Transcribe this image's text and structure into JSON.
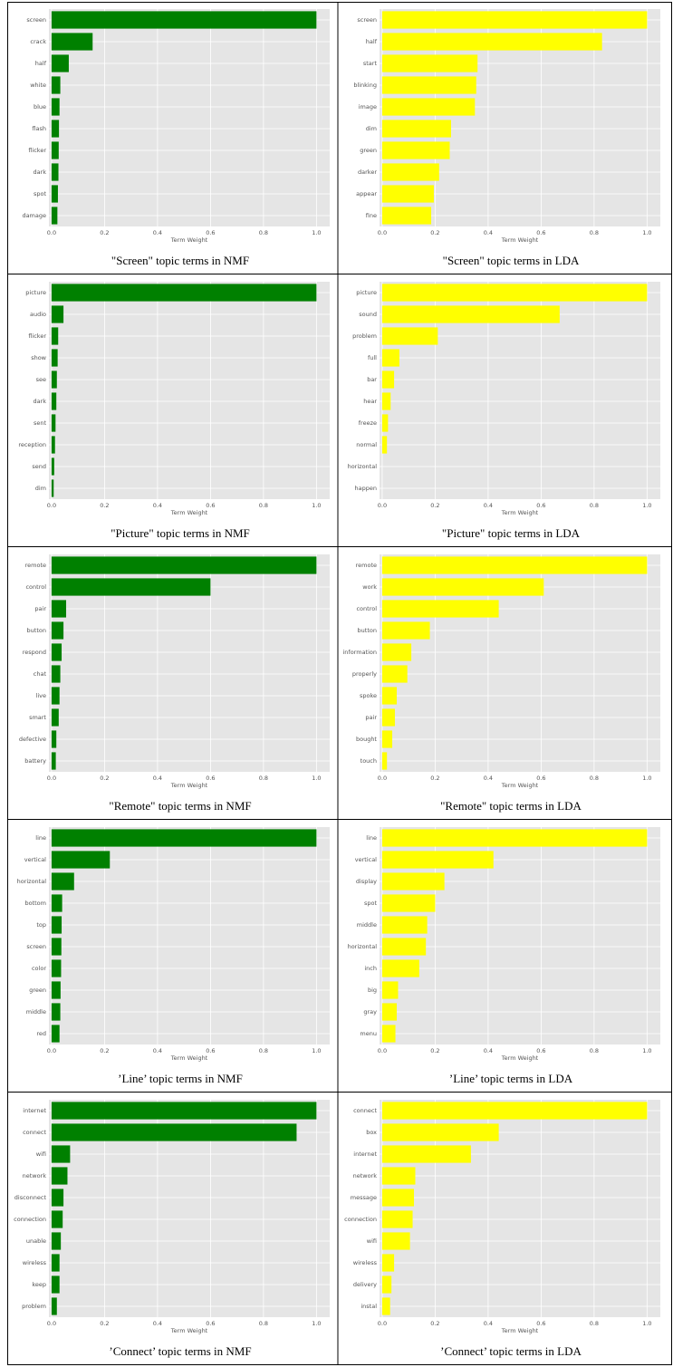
{
  "chart_data": [
    {
      "type": "bar",
      "orientation": "horizontal",
      "caption": "\"Screen\" topic terms in NMF",
      "xlabel": "Term Weight",
      "color": "#008000",
      "grid": true,
      "categories": [
        "screen",
        "crack",
        "half",
        "white",
        "blue",
        "flash",
        "flicker",
        "dark",
        "spot",
        "damage"
      ],
      "values": [
        1.0,
        0.155,
        0.065,
        0.033,
        0.03,
        0.028,
        0.027,
        0.026,
        0.024,
        0.022
      ],
      "xlim": [
        -0.01,
        1.05
      ],
      "xticks": [
        {
          "value": 0,
          "label": "0.0"
        },
        0.2,
        0.4,
        0.6,
        0.8,
        {
          "value": 1,
          "label": "1.0"
        }
      ]
    },
    {
      "type": "bar",
      "orientation": "horizontal",
      "caption": "\"Screen\" topic terms in LDA",
      "xlabel": "Term Weight",
      "color": "#ffff00",
      "grid": true,
      "categories": [
        "screen",
        "half",
        "start",
        "blinking",
        "image",
        "dim",
        "green",
        "darker",
        "appear",
        "fine"
      ],
      "values": [
        1.0,
        0.83,
        0.36,
        0.355,
        0.35,
        0.26,
        0.255,
        0.215,
        0.195,
        0.185
      ],
      "xlim": [
        -0.01,
        1.05
      ],
      "xticks": [
        {
          "value": 0,
          "label": "0.0"
        },
        0.2,
        0.4,
        0.6,
        0.8,
        {
          "value": 1,
          "label": "1.0"
        }
      ]
    },
    {
      "type": "bar",
      "orientation": "horizontal",
      "caption": "\"Picture\" topic terms in NMF",
      "xlabel": "Term Weight",
      "color": "#008000",
      "grid": true,
      "categories": [
        "picture",
        "audio",
        "flicker",
        "show",
        "see",
        "dark",
        "sent",
        "reception",
        "send",
        "dim"
      ],
      "values": [
        1.0,
        0.045,
        0.025,
        0.023,
        0.02,
        0.018,
        0.015,
        0.013,
        0.01,
        0.008
      ],
      "xlim": [
        -0.01,
        1.05
      ],
      "xticks": [
        {
          "value": 0,
          "label": "0.0"
        },
        0.2,
        0.4,
        0.6,
        0.8,
        {
          "value": 1,
          "label": "1.0"
        }
      ]
    },
    {
      "type": "bar",
      "orientation": "horizontal",
      "caption": "\"Picture\" topic terms in LDA",
      "xlabel": "Term Weight",
      "color": "#ffff00",
      "grid": true,
      "categories": [
        "picture",
        "sound",
        "problem",
        "full",
        "bar",
        "hear",
        "freeze",
        "normal",
        "horizontal",
        "happen"
      ],
      "values": [
        1.0,
        0.67,
        0.21,
        0.065,
        0.045,
        0.032,
        0.022,
        0.018,
        0,
        0
      ],
      "xlim": [
        -0.01,
        1.05
      ],
      "xticks": [
        {
          "value": 0,
          "label": "0.0"
        },
        0.2,
        0.4,
        0.6,
        0.8,
        {
          "value": 1,
          "label": "1.0"
        }
      ]
    },
    {
      "type": "bar",
      "orientation": "horizontal",
      "caption": "\"Remote\" topic terms in NMF",
      "xlabel": "Term Weight",
      "color": "#008000",
      "grid": true,
      "categories": [
        "remote",
        "control",
        "pair",
        "button",
        "respond",
        "chat",
        "live",
        "smart",
        "defective",
        "battery"
      ],
      "values": [
        1.0,
        0.6,
        0.055,
        0.045,
        0.038,
        0.033,
        0.03,
        0.027,
        0.018,
        0.016
      ],
      "xlim": [
        -0.01,
        1.05
      ],
      "xticks": [
        {
          "value": 0,
          "label": "0.0"
        },
        0.2,
        0.4,
        0.6,
        0.8,
        {
          "value": 1,
          "label": "1.0"
        }
      ]
    },
    {
      "type": "bar",
      "orientation": "horizontal",
      "caption": "\"Remote\" topic terms in LDA",
      "xlabel": "Term Weight",
      "color": "#ffff00",
      "grid": true,
      "categories": [
        "remote",
        "work",
        "control",
        "button",
        "information",
        "properly",
        "spoke",
        "pair",
        "bought",
        "touch"
      ],
      "values": [
        1.0,
        0.61,
        0.44,
        0.18,
        0.11,
        0.095,
        0.055,
        0.048,
        0.038,
        0.018
      ],
      "xlim": [
        -0.01,
        1.05
      ],
      "xticks": [
        {
          "value": 0,
          "label": "0.0"
        },
        0.2,
        0.4,
        0.6,
        0.8,
        {
          "value": 1,
          "label": "1.0"
        }
      ]
    },
    {
      "type": "bar",
      "orientation": "horizontal",
      "caption": "’Line’ topic terms in NMF",
      "xlabel": "Term Weight",
      "color": "#008000",
      "grid": true,
      "categories": [
        "line",
        "vertical",
        "horizontal",
        "bottom",
        "top",
        "screen",
        "color",
        "green",
        "middle",
        "red"
      ],
      "values": [
        1.0,
        0.22,
        0.085,
        0.04,
        0.038,
        0.037,
        0.036,
        0.034,
        0.033,
        0.03
      ],
      "xlim": [
        -0.01,
        1.05
      ],
      "xticks": [
        {
          "value": 0,
          "label": "0.0"
        },
        0.2,
        0.4,
        0.6,
        0.8,
        {
          "value": 1,
          "label": "1.0"
        }
      ]
    },
    {
      "type": "bar",
      "orientation": "horizontal",
      "caption": "’Line’ topic terms in LDA",
      "xlabel": "Term Weight",
      "color": "#ffff00",
      "grid": true,
      "categories": [
        "line",
        "vertical",
        "display",
        "spot",
        "middle",
        "horizontal",
        "inch",
        "big",
        "gray",
        "menu"
      ],
      "values": [
        1.0,
        0.42,
        0.235,
        0.2,
        0.17,
        0.165,
        0.14,
        0.06,
        0.055,
        0.05
      ],
      "xlim": [
        -0.01,
        1.05
      ],
      "xticks": [
        {
          "value": 0,
          "label": "0.0"
        },
        0.2,
        0.4,
        0.6,
        0.8,
        {
          "value": 1,
          "label": "1.0"
        }
      ]
    },
    {
      "type": "bar",
      "orientation": "horizontal",
      "caption": "’Connect’ topic terms in NMF",
      "xlabel": "Term Weight",
      "color": "#008000",
      "grid": true,
      "categories": [
        "internet",
        "connect",
        "wifi",
        "network",
        "disconnect",
        "connection",
        "unable",
        "wireless",
        "keep",
        "problem"
      ],
      "values": [
        1.0,
        0.925,
        0.07,
        0.06,
        0.045,
        0.042,
        0.035,
        0.03,
        0.03,
        0.02
      ],
      "xlim": [
        -0.01,
        1.05
      ],
      "xticks": [
        {
          "value": 0,
          "label": "0.0"
        },
        0.2,
        0.4,
        0.6,
        0.8,
        {
          "value": 1,
          "label": "1.0"
        }
      ]
    },
    {
      "type": "bar",
      "orientation": "horizontal",
      "caption": "’Connect’ topic terms in LDA",
      "xlabel": "Term Weight",
      "color": "#ffff00",
      "grid": true,
      "categories": [
        "connect",
        "box",
        "internet",
        "network",
        "message",
        "connection",
        "wifi",
        "wireless",
        "delivery",
        "instal"
      ],
      "values": [
        1.0,
        0.44,
        0.335,
        0.125,
        0.12,
        0.115,
        0.105,
        0.045,
        0.035,
        0.03
      ],
      "xlim": [
        -0.01,
        1.05
      ],
      "xticks": [
        {
          "value": 0,
          "label": "0.0"
        },
        0.2,
        0.4,
        0.6,
        0.8,
        {
          "value": 1,
          "label": "1.0"
        }
      ]
    }
  ]
}
